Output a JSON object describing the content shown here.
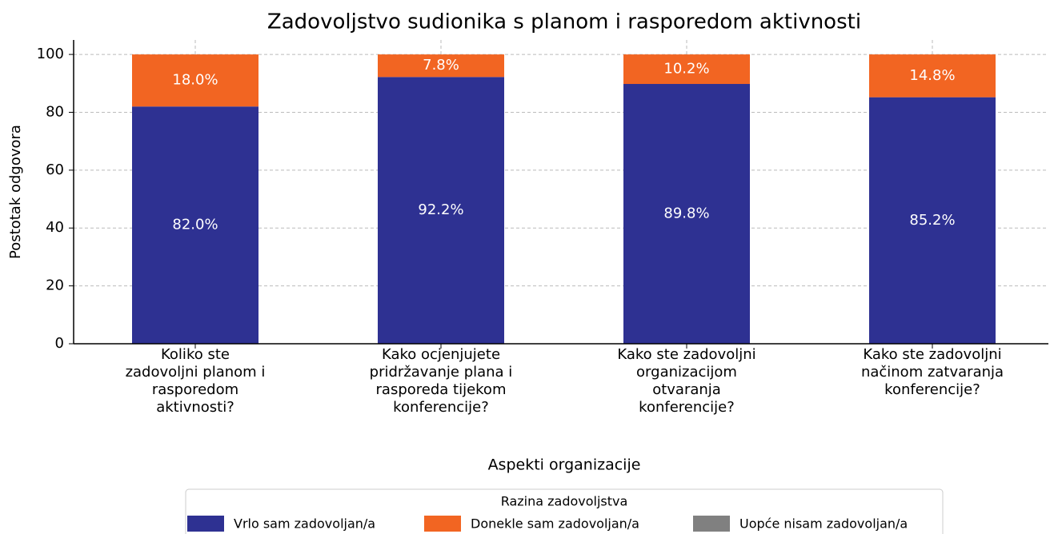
{
  "chart_data": {
    "type": "stacked_bar",
    "title": "Zadovoljstvo sudionika s planom i rasporedom aktivnosti",
    "x_label": "Aspekti organizacije",
    "y_label": "Postotak odgovora",
    "categories": [
      "Koliko ste\nzadovoljni planom i\nrasporedom\naktivnosti?",
      "Kako ocjenjujete\npridržavanje plana i\nrasporeda tijekom\nkonferencije?",
      "Kako ste zadovoljni\norganizacijom\notvaranja\nkonferencije?",
      "Kako ste zadovoljni\nnačinom zatvaranja\nkonferencije?"
    ],
    "series": [
      {
        "name": "Vrlo sam zadovoljan/a",
        "color": "#2e3192",
        "values": [
          82.0,
          92.2,
          89.8,
          85.2
        ],
        "value_labels": [
          "82.0%",
          "92.2%",
          "89.8%",
          "85.2%"
        ]
      },
      {
        "name": "Donekle sam zadovoljan/a",
        "color": "#f26522",
        "values": [
          18.0,
          7.8,
          10.2,
          14.8
        ],
        "value_labels": [
          "18.0%",
          "7.8%",
          "10.2%",
          "14.8%"
        ]
      },
      {
        "name": "Uopće nisam zadovoljan/a",
        "color": "#808080",
        "values": [
          0,
          0,
          0,
          0
        ]
      }
    ],
    "legend_title": "Razina zadovoljstva",
    "legend_position": "bottom",
    "ylim": [
      0,
      105
    ],
    "yticks": [
      0,
      20,
      40,
      60,
      80,
      100
    ],
    "grid": true
  }
}
